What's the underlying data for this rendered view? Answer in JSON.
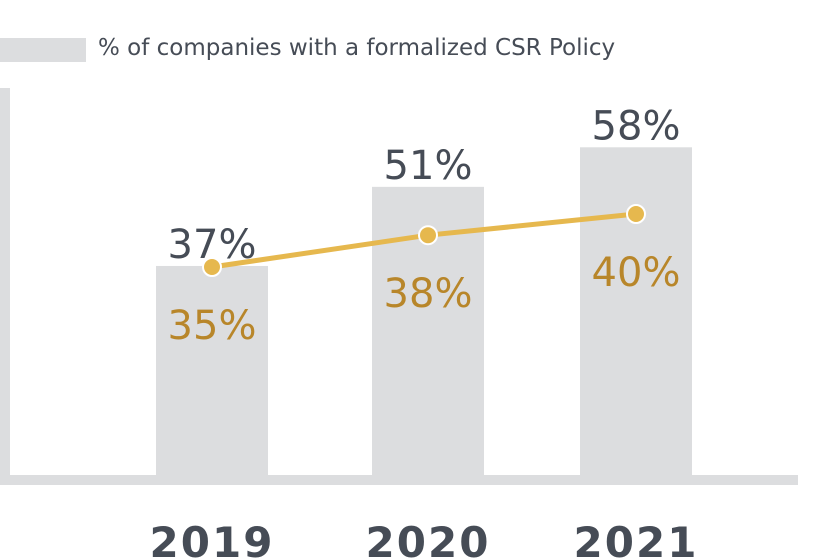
{
  "legend": {
    "bar_label": "% of companies with a formalized CSR Policy"
  },
  "colors": {
    "bar": "#dcdddf",
    "bar_text": "#464c56",
    "line": "#e6b84e",
    "line_text": "#b8862a"
  },
  "chart_data": {
    "type": "bar",
    "categories": [
      "2019",
      "2020",
      "2021"
    ],
    "series": [
      {
        "name": "% of companies with a formalized CSR Policy",
        "kind": "bar",
        "values": [
          37,
          51,
          58
        ],
        "labels": [
          "37%",
          "51%",
          "58%"
        ]
      },
      {
        "kind": "line",
        "values": [
          35,
          38,
          40
        ],
        "labels": [
          "35%",
          "38%",
          "40%"
        ]
      }
    ],
    "ylim": [
      0,
      74
    ],
    "grid": false,
    "legend_position": "top-left"
  }
}
